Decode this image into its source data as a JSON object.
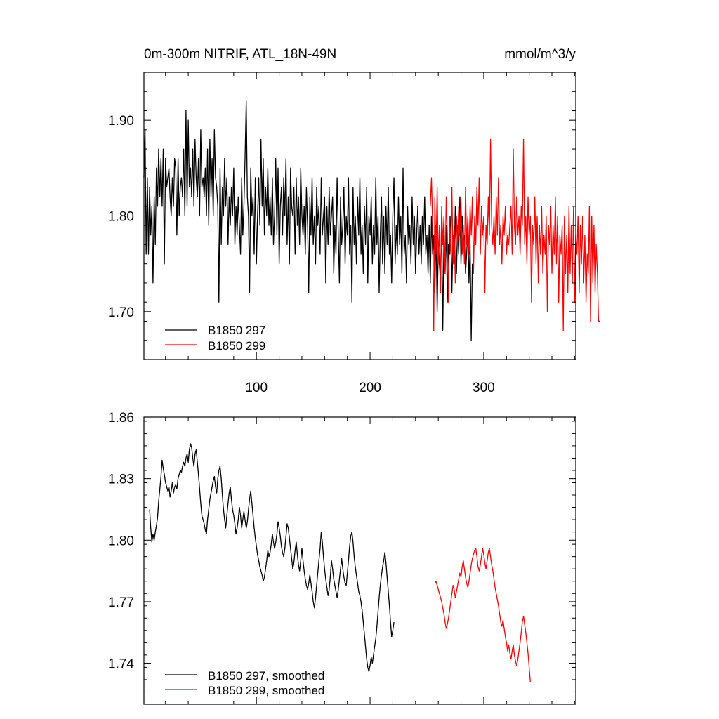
{
  "figure": {
    "title_left": "0m-300m NITRIF, ATL_18N-49N",
    "title_right": "mmol/m^3/y"
  },
  "colors": {
    "series_297": "#000000",
    "series_299": "#ff0000"
  },
  "chart_data": [
    {
      "type": "line",
      "name": "annual",
      "title": "0m-300m NITRIF, ATL_18N-49N",
      "units": "mmol/m^3/y",
      "xlim": [
        1,
        381
      ],
      "ylim": [
        1.65,
        1.95
      ],
      "xticks": [
        100,
        200,
        300
      ],
      "yticks": [
        1.7,
        1.8,
        1.9
      ],
      "ytick_labels": [
        "1.70",
        "1.80",
        "1.90"
      ],
      "xtick_labels": [
        "100",
        "200",
        "300"
      ],
      "legend": "bottom-left",
      "series": [
        {
          "name": "B1850 297",
          "color": "#000000",
          "x_start": 1,
          "values": [
            1.84,
            1.89,
            1.76,
            1.84,
            1.76,
            1.83,
            1.78,
            1.81,
            1.73,
            1.82,
            1.77,
            1.85,
            1.81,
            1.87,
            1.82,
            1.86,
            1.81,
            1.87,
            1.75,
            1.86,
            1.83,
            1.84,
            1.85,
            1.82,
            1.8,
            1.84,
            1.81,
            1.86,
            1.85,
            1.78,
            1.86,
            1.8,
            1.83,
            1.84,
            1.82,
            1.87,
            1.8,
            1.91,
            1.81,
            1.9,
            1.83,
            1.85,
            1.82,
            1.87,
            1.81,
            1.88,
            1.84,
            1.82,
            1.86,
            1.8,
            1.89,
            1.83,
            1.84,
            1.82,
            1.85,
            1.8,
            1.87,
            1.79,
            1.88,
            1.82,
            1.86,
            1.8,
            1.89,
            1.84,
            1.83,
            1.81,
            1.71,
            1.85,
            1.77,
            1.83,
            1.8,
            1.86,
            1.81,
            1.84,
            1.77,
            1.82,
            1.79,
            1.83,
            1.8,
            1.85,
            1.77,
            1.81,
            1.78,
            1.82,
            1.79,
            1.76,
            1.84,
            1.78,
            1.81,
            1.86,
            1.92,
            1.82,
            1.8,
            1.72,
            1.85,
            1.8,
            1.82,
            1.76,
            1.84,
            1.75,
            1.8,
            1.84,
            1.79,
            1.88,
            1.81,
            1.86,
            1.78,
            1.83,
            1.8,
            1.85,
            1.79,
            1.82,
            1.78,
            1.84,
            1.77,
            1.8,
            1.86,
            1.78,
            1.85,
            1.75,
            1.81,
            1.83,
            1.78,
            1.84,
            1.8,
            1.86,
            1.77,
            1.82,
            1.75,
            1.85,
            1.81,
            1.8,
            1.83,
            1.76,
            1.84,
            1.79,
            1.82,
            1.77,
            1.85,
            1.8,
            1.78,
            1.81,
            1.76,
            1.83,
            1.79,
            1.72,
            1.82,
            1.78,
            1.84,
            1.77,
            1.8,
            1.75,
            1.83,
            1.79,
            1.81,
            1.76,
            1.84,
            1.78,
            1.8,
            1.82,
            1.73,
            1.81,
            1.77,
            1.83,
            1.78,
            1.8,
            1.82,
            1.74,
            1.79,
            1.76,
            1.84,
            1.78,
            1.73,
            1.82,
            1.77,
            1.79,
            1.83,
            1.75,
            1.8,
            1.78,
            1.84,
            1.76,
            1.79,
            1.71,
            1.83,
            1.77,
            1.8,
            1.75,
            1.82,
            1.78,
            1.84,
            1.76,
            1.79,
            1.74,
            1.81,
            1.77,
            1.83,
            1.73,
            1.8,
            1.78,
            1.82,
            1.75,
            1.79,
            1.76,
            1.84,
            1.77,
            1.8,
            1.72,
            1.78,
            1.82,
            1.75,
            1.8,
            1.74,
            1.81,
            1.77,
            1.83,
            1.76,
            1.78,
            1.73,
            1.8,
            1.84,
            1.75,
            1.79,
            1.76,
            1.82,
            1.77,
            1.8,
            1.74,
            1.85,
            1.76,
            1.78,
            1.73,
            1.81,
            1.77,
            1.79,
            1.75,
            1.82,
            1.77,
            1.8,
            1.74,
            1.78,
            1.81,
            1.76,
            1.79,
            1.75,
            1.8,
            1.77,
            1.82,
            1.76,
            1.78,
            1.74,
            1.79,
            1.73,
            1.8,
            1.76,
            1.78,
            1.72,
            1.79,
            1.7,
            1.77,
            1.75,
            1.73,
            1.8,
            1.68,
            1.78,
            1.74,
            1.79,
            1.71,
            1.77,
            1.76,
            1.8,
            1.72,
            1.78,
            1.75,
            1.81,
            1.74,
            1.79,
            1.76,
            1.82,
            1.75,
            1.8,
            1.77,
            1.78,
            1.74,
            1.76,
            1.79,
            1.73,
            1.77,
            1.67,
            1.75
          ]
        },
        {
          "name": "B1850 299",
          "color": "#ff0000",
          "x_start": 253,
          "values": [
            1.81,
            1.84,
            1.79,
            1.68,
            1.82,
            1.76,
            1.83,
            1.75,
            1.79,
            1.72,
            1.81,
            1.77,
            1.8,
            1.74,
            1.82,
            1.78,
            1.71,
            1.8,
            1.76,
            1.83,
            1.75,
            1.79,
            1.73,
            1.8,
            1.77,
            1.81,
            1.78,
            1.82,
            1.76,
            1.79,
            1.75,
            1.83,
            1.77,
            1.8,
            1.76,
            1.81,
            1.78,
            1.82,
            1.74,
            1.8,
            1.77,
            1.83,
            1.79,
            1.84,
            1.76,
            1.81,
            1.78,
            1.8,
            1.72,
            1.79,
            1.77,
            1.82,
            1.78,
            1.88,
            1.79,
            1.77,
            1.8,
            1.76,
            1.82,
            1.78,
            1.84,
            1.77,
            1.79,
            1.75,
            1.8,
            1.78,
            1.81,
            1.76,
            1.78,
            1.77,
            1.79,
            1.81,
            1.76,
            1.87,
            1.79,
            1.77,
            1.82,
            1.78,
            1.8,
            1.76,
            1.81,
            1.79,
            1.88,
            1.77,
            1.8,
            1.75,
            1.82,
            1.78,
            1.8,
            1.71,
            1.79,
            1.77,
            1.82,
            1.75,
            1.8,
            1.73,
            1.79,
            1.76,
            1.81,
            1.74,
            1.78,
            1.76,
            1.8,
            1.7,
            1.79,
            1.77,
            1.81,
            1.74,
            1.79,
            1.76,
            1.82,
            1.75,
            1.8,
            1.71,
            1.78,
            1.76,
            1.79,
            1.68,
            1.8,
            1.74,
            1.78,
            1.72,
            1.81,
            1.74,
            1.79,
            1.73,
            1.81,
            1.71,
            1.78,
            1.76,
            1.8,
            1.72,
            1.79,
            1.75,
            1.8,
            1.73,
            1.78,
            1.71,
            1.76,
            1.74,
            1.81,
            1.69,
            1.8,
            1.73,
            1.79,
            1.72,
            1.77,
            1.74,
            1.69,
            1.69
          ]
        }
      ]
    },
    {
      "type": "line",
      "name": "smoothed",
      "xlim": [
        1,
        381
      ],
      "ylim": [
        1.72,
        1.86
      ],
      "yticks": [
        1.74,
        1.77,
        1.8,
        1.83,
        1.86
      ],
      "ytick_labels": [
        "1.74",
        "1.77",
        "1.80",
        "1.83",
        "1.86"
      ],
      "legend": "bottom-left",
      "series": [
        {
          "name": "B1850 297, smoothed",
          "color": "#000000",
          "x_start": 6,
          "values": [
            1.815,
            1.806,
            1.799,
            1.803,
            1.8,
            1.804,
            1.807,
            1.811,
            1.819,
            1.825,
            1.831,
            1.839,
            1.835,
            1.832,
            1.828,
            1.826,
            1.824,
            1.826,
            1.821,
            1.824,
            1.828,
            1.823,
            1.826,
            1.827,
            1.825,
            1.83,
            1.832,
            1.834,
            1.833,
            1.836,
            1.838,
            1.836,
            1.84,
            1.842,
            1.838,
            1.844,
            1.847,
            1.845,
            1.84,
            1.836,
            1.842,
            1.844,
            1.838,
            1.832,
            1.825,
            1.818,
            1.812,
            1.81,
            1.808,
            1.805,
            1.803,
            1.81,
            1.815,
            1.82,
            1.823,
            1.826,
            1.829,
            1.831,
            1.826,
            1.823,
            1.83,
            1.834,
            1.836,
            1.83,
            1.822,
            1.815,
            1.81,
            1.806,
            1.812,
            1.818,
            1.823,
            1.826,
            1.82,
            1.815,
            1.812,
            1.808,
            1.803,
            1.806,
            1.81,
            1.816,
            1.812,
            1.806,
            1.81,
            1.814,
            1.81,
            1.806,
            1.809,
            1.815,
            1.82,
            1.824,
            1.818,
            1.812,
            1.806,
            1.801,
            1.797,
            1.793,
            1.79,
            1.787,
            1.785,
            1.783,
            1.78,
            1.782,
            1.786,
            1.79,
            1.795,
            1.792,
            1.794,
            1.798,
            1.803,
            1.799,
            1.796,
            1.799,
            1.803,
            1.809,
            1.806,
            1.802,
            1.797,
            1.794,
            1.792,
            1.796,
            1.802,
            1.808,
            1.806,
            1.801,
            1.796,
            1.791,
            1.786,
            1.789,
            1.795,
            1.799,
            1.793,
            1.788,
            1.785,
            1.79,
            1.796,
            1.79,
            1.785,
            1.781,
            1.778,
            1.776,
            1.779,
            1.783,
            1.779,
            1.775,
            1.77,
            1.767,
            1.772,
            1.778,
            1.784,
            1.79,
            1.796,
            1.804,
            1.799,
            1.792,
            1.786,
            1.781,
            1.777,
            1.773,
            1.776,
            1.782,
            1.79,
            1.786,
            1.781,
            1.778,
            1.775,
            1.772,
            1.776,
            1.781,
            1.786,
            1.791,
            1.786,
            1.782,
            1.779,
            1.778,
            1.784,
            1.79,
            1.797,
            1.802,
            1.804,
            1.799,
            1.792,
            1.787,
            1.783,
            1.779,
            1.775,
            1.773,
            1.77,
            1.766,
            1.76,
            1.754,
            1.748,
            1.742,
            1.738,
            1.736,
            1.739,
            1.743,
            1.74,
            1.744,
            1.748,
            1.752,
            1.758,
            1.765,
            1.772,
            1.778,
            1.783,
            1.787,
            1.79,
            1.794,
            1.789,
            1.782,
            1.775,
            1.768,
            1.76,
            1.753,
            1.756,
            1.76
          ]
        },
        {
          "name": "B1850 299, smoothed",
          "color": "#ff0000",
          "x_start": 257,
          "values": [
            1.779,
            1.78,
            1.778,
            1.776,
            1.774,
            1.772,
            1.77,
            1.767,
            1.764,
            1.76,
            1.757,
            1.759,
            1.762,
            1.766,
            1.77,
            1.774,
            1.778,
            1.776,
            1.772,
            1.775,
            1.778,
            1.781,
            1.784,
            1.782,
            1.787,
            1.79,
            1.786,
            1.782,
            1.779,
            1.777,
            1.78,
            1.784,
            1.788,
            1.791,
            1.793,
            1.795,
            1.796,
            1.792,
            1.787,
            1.785,
            1.788,
            1.792,
            1.796,
            1.793,
            1.789,
            1.786,
            1.79,
            1.794,
            1.796,
            1.792,
            1.788,
            1.785,
            1.781,
            1.777,
            1.774,
            1.771,
            1.768,
            1.764,
            1.76,
            1.758,
            1.761,
            1.757,
            1.753,
            1.75,
            1.746,
            1.749,
            1.745,
            1.742,
            1.746,
            1.749,
            1.744,
            1.741,
            1.739,
            1.742,
            1.746,
            1.75,
            1.755,
            1.76,
            1.763,
            1.759,
            1.755,
            1.75,
            1.745,
            1.738,
            1.731
          ]
        }
      ]
    }
  ]
}
